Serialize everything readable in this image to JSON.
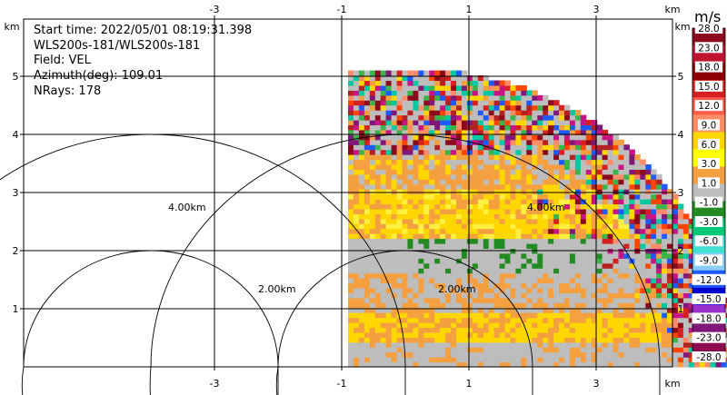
{
  "info": {
    "start_time": "Start time: 2022/05/01 08:19:31.398",
    "instrument": "WLS200s-181/WLS200s-181",
    "field": "Field: VEL",
    "azimuth": "Azimuth(deg): 109.01",
    "nrays": "NRays: 178"
  },
  "colorbar": {
    "unit": "m/s",
    "labels": [
      "28.0",
      "23.0",
      "18.0",
      "15.0",
      "12.0",
      "9.0",
      "6.0",
      "3.0",
      "1.0",
      "-1.0",
      "-3.0",
      "-6.0",
      "-9.0",
      "-12.0",
      "-15.0",
      "-18.0",
      "-23.0",
      "-28.0"
    ],
    "colors": [
      "#8b0a1e",
      "#c01530",
      "#8b0000",
      "#d62020",
      "#ff5a4a",
      "#ff8c69",
      "#ffd700",
      "#ffff00",
      "#f4a040",
      "#bdbdbd",
      "#228b22",
      "#00c878",
      "#40e0d0",
      "#87cefa",
      "#1e5aff",
      "#0000d0",
      "#9932cc",
      "#80187a",
      "#8b0a50"
    ]
  },
  "chart_data": {
    "type": "heatmap",
    "description_mode": "RHI scan (range-height indicator) of radial velocity",
    "x_axis": {
      "unit_label": "km",
      "ticks": [
        "-3",
        "-1",
        "1",
        "3"
      ],
      "range": [
        -3,
        5
      ]
    },
    "y_axis": {
      "unit_label": "km",
      "ticks": [
        "1",
        "2",
        "3",
        "4",
        "5"
      ],
      "range": [
        0,
        5.3
      ]
    },
    "range_rings": [
      {
        "label": "2.00km",
        "radius_km": 2
      },
      {
        "label": "4.00km",
        "radius_km": 4
      }
    ],
    "radar_x_km": 0.0,
    "max_range_km": 5.1,
    "layers": [
      {
        "z_from": 0.0,
        "z_to": 0.35,
        "category": "gray"
      },
      {
        "z_from": 0.35,
        "z_to": 0.9,
        "category": "orange/yellow"
      },
      {
        "z_from": 0.9,
        "z_to": 1.6,
        "category": "gray/orange"
      },
      {
        "z_from": 1.6,
        "z_to": 2.2,
        "category": "gray with green"
      },
      {
        "z_from": 2.2,
        "z_to": 3.0,
        "category": "yellow/orange"
      },
      {
        "z_from": 3.0,
        "z_to": 3.6,
        "category": "orange/gray"
      },
      {
        "z_from": 3.6,
        "z_to": 5.1,
        "category": "noise (mixed)"
      }
    ]
  }
}
